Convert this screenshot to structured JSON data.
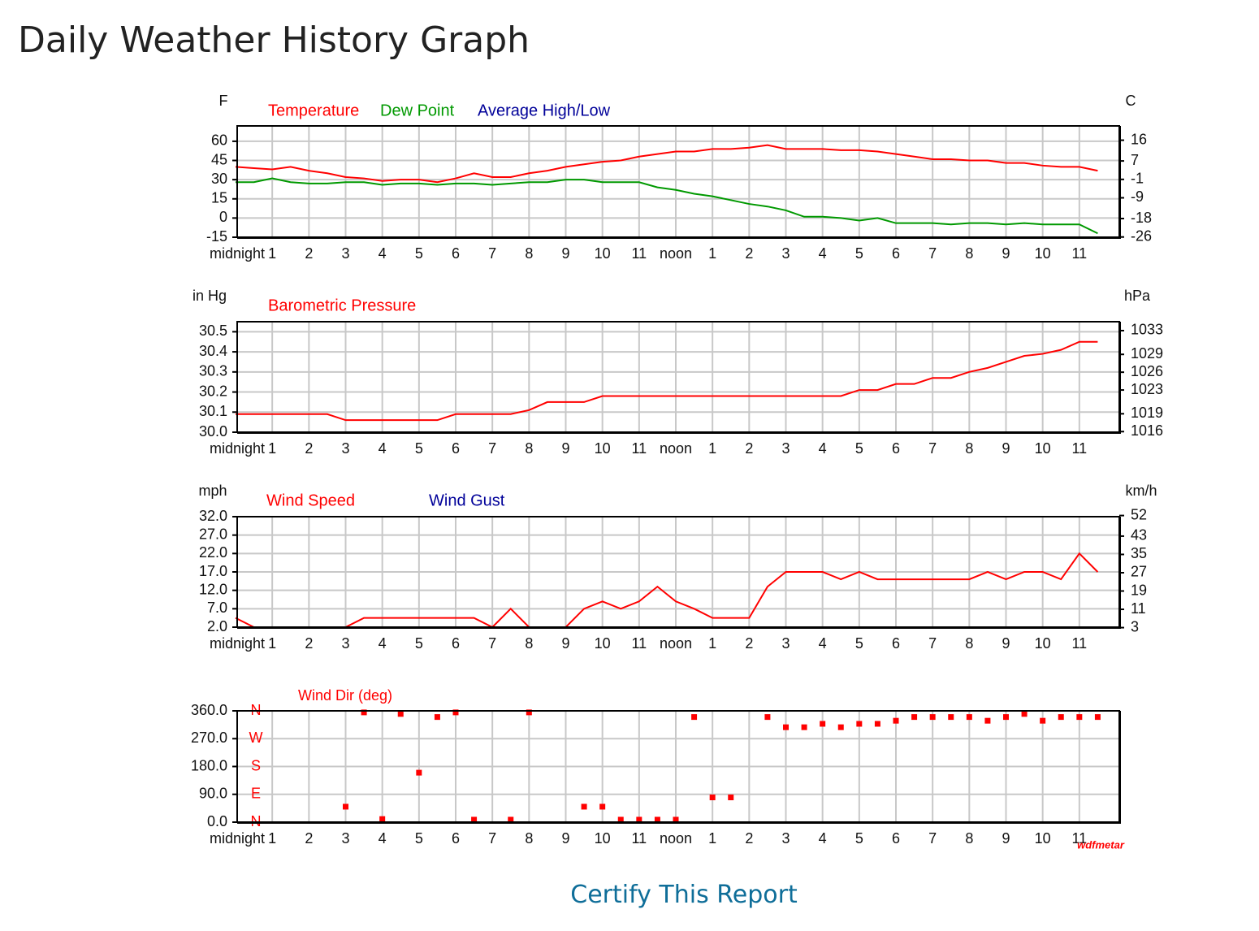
{
  "page_title": "Daily Weather History Graph",
  "link": "Certify This Report",
  "watermark": "wdfmetar",
  "chart_data": [
    {
      "type": "line",
      "ylabel": "F",
      "y2label": "C",
      "x": [
        0,
        0.5,
        1,
        1.5,
        2,
        2.5,
        3,
        3.5,
        4,
        4.5,
        5,
        5.5,
        6,
        6.5,
        7,
        7.5,
        8,
        8.5,
        9,
        9.5,
        10,
        10.5,
        11,
        11.5,
        12,
        12.5,
        13,
        13.5,
        14,
        14.5,
        15,
        15.5,
        16,
        16.5,
        17,
        17.5,
        18,
        18.5,
        19,
        19.5,
        20,
        20.5,
        21,
        21.5,
        22,
        22.5,
        23,
        23.5
      ],
      "series": [
        {
          "name": "Temperature",
          "color": "#ff0000",
          "values": [
            40,
            39,
            38,
            40,
            37,
            35,
            32,
            31,
            29,
            30,
            30,
            28,
            31,
            35,
            32,
            32,
            35,
            37,
            40,
            42,
            44,
            45,
            48,
            50,
            52,
            52,
            54,
            54,
            55,
            57,
            54,
            54,
            54,
            53,
            53,
            52,
            50,
            48,
            46,
            46,
            45,
            45,
            43,
            43,
            41,
            40,
            40,
            37
          ]
        },
        {
          "name": "Dew Point",
          "color": "#009900",
          "values": [
            28,
            28,
            31,
            28,
            27,
            27,
            28,
            28,
            26,
            27,
            27,
            26,
            27,
            27,
            26,
            27,
            28,
            28,
            30,
            30,
            28,
            28,
            28,
            24,
            22,
            19,
            17,
            14,
            11,
            9,
            6,
            1,
            1,
            0,
            -2,
            0,
            -4,
            -4,
            -4,
            -5,
            -4,
            -4,
            -5,
            -4,
            -5,
            -5,
            -5,
            -12
          ]
        },
        {
          "name": "Average High/Low",
          "color": "#000099",
          "values": [
            null,
            null,
            null,
            null,
            null,
            null,
            null,
            null,
            null,
            null,
            null,
            null,
            null,
            null,
            null,
            null,
            null,
            null,
            null,
            null,
            null,
            null,
            null,
            null,
            null,
            null,
            null,
            null,
            null,
            null,
            null,
            null,
            null,
            null,
            null,
            null,
            null,
            null,
            null,
            null,
            null,
            null,
            null,
            null,
            null,
            null,
            null,
            null
          ]
        }
      ],
      "xlim": [
        0,
        24
      ],
      "xticks": [
        {
          "value": 0,
          "label": "midnight"
        },
        1,
        2,
        3,
        4,
        5,
        6,
        7,
        8,
        9,
        10,
        11,
        {
          "value": 12,
          "label": "noon"
        },
        {
          "value": 13,
          "label": "1"
        },
        {
          "value": 14,
          "label": "2"
        },
        {
          "value": 15,
          "label": "3"
        },
        {
          "value": 16,
          "label": "4"
        },
        {
          "value": 17,
          "label": "5"
        },
        {
          "value": 18,
          "label": "6"
        },
        {
          "value": 19,
          "label": "7"
        },
        {
          "value": 20,
          "label": "8"
        },
        {
          "value": 21,
          "label": "9"
        },
        {
          "value": 22,
          "label": "10"
        },
        {
          "value": 23,
          "label": "11"
        }
      ],
      "ylim": [
        -15,
        72
      ],
      "yticks": [
        60,
        45,
        30,
        15,
        0,
        -15
      ],
      "y2lim": [
        -26.1,
        22.2
      ],
      "y2ticks": [
        16,
        7,
        -1,
        -9,
        -18,
        -26
      ],
      "grid": true
    },
    {
      "type": "line",
      "ylabel": "in Hg",
      "y2label": "hPa",
      "x": [
        0,
        0.5,
        1,
        1.5,
        2,
        2.5,
        3,
        3.5,
        4,
        4.5,
        5,
        5.5,
        6,
        6.5,
        7,
        7.5,
        8,
        8.5,
        9,
        9.5,
        10,
        10.5,
        11,
        11.5,
        12,
        12.5,
        13,
        13.5,
        14,
        14.5,
        15,
        15.5,
        16,
        16.5,
        17,
        17.5,
        18,
        18.5,
        19,
        19.5,
        20,
        20.5,
        21,
        21.5,
        22,
        22.5,
        23,
        23.5
      ],
      "series": [
        {
          "name": "Barometric Pressure",
          "color": "#ff0000",
          "values": [
            30.09,
            30.09,
            30.09,
            30.09,
            30.09,
            30.09,
            30.06,
            30.06,
            30.06,
            30.06,
            30.06,
            30.06,
            30.09,
            30.09,
            30.09,
            30.09,
            30.11,
            30.15,
            30.15,
            30.15,
            30.18,
            30.18,
            30.18,
            30.18,
            30.18,
            30.18,
            30.18,
            30.18,
            30.18,
            30.18,
            30.18,
            30.18,
            30.18,
            30.18,
            30.21,
            30.21,
            30.24,
            30.24,
            30.27,
            30.27,
            30.3,
            30.32,
            30.35,
            30.38,
            30.39,
            30.41,
            30.45,
            30.45
          ]
        }
      ],
      "xlim": [
        0,
        24
      ],
      "xticks": [
        {
          "value": 0,
          "label": "midnight"
        },
        1,
        2,
        3,
        4,
        5,
        6,
        7,
        8,
        9,
        10,
        11,
        {
          "value": 12,
          "label": "noon"
        },
        {
          "value": 13,
          "label": "1"
        },
        {
          "value": 14,
          "label": "2"
        },
        {
          "value": 15,
          "label": "3"
        },
        {
          "value": 16,
          "label": "4"
        },
        {
          "value": 17,
          "label": "5"
        },
        {
          "value": 18,
          "label": "6"
        },
        {
          "value": 19,
          "label": "7"
        },
        {
          "value": 20,
          "label": "8"
        },
        {
          "value": 21,
          "label": "9"
        },
        {
          "value": 22,
          "label": "10"
        },
        {
          "value": 23,
          "label": "11"
        }
      ],
      "ylim": [
        30.0,
        30.55
      ],
      "yticks": [
        30.5,
        30.4,
        30.3,
        30.2,
        30.1,
        {
          "value": 30,
          "label": "30.0"
        }
      ],
      "y2lim": [
        1015.9,
        1034.5
      ],
      "y2ticks": [
        1033,
        1029,
        1026,
        1023,
        1019,
        1016
      ],
      "grid": true
    },
    {
      "type": "line",
      "ylabel": "mph",
      "y2label": "km/h",
      "x": [
        0,
        0.5,
        1,
        1.5,
        2,
        2.5,
        3,
        3.5,
        4,
        4.5,
        5,
        5.5,
        6,
        6.5,
        7,
        7.5,
        8,
        8.5,
        9,
        9.5,
        10,
        10.5,
        11,
        11.5,
        12,
        12.5,
        13,
        13.5,
        14,
        14.5,
        15,
        15.5,
        16,
        16.5,
        17,
        17.5,
        18,
        18.5,
        19,
        19.5,
        20,
        20.5,
        21,
        21.5,
        22,
        22.5,
        23,
        23.5
      ],
      "series": [
        {
          "name": "Wind Speed",
          "color": "#ff0000",
          "values": [
            4.5,
            2,
            2,
            2,
            2,
            2,
            2,
            4.5,
            4.5,
            4.5,
            4.5,
            4.5,
            4.5,
            4.5,
            2,
            7,
            2,
            2,
            2,
            7,
            9,
            7,
            9,
            13,
            9,
            7,
            4.5,
            4.5,
            4.5,
            13,
            17,
            17,
            17,
            15,
            17,
            15,
            15,
            15,
            15,
            15,
            15,
            17,
            15,
            17,
            17,
            15,
            22,
            17
          ]
        },
        {
          "name": "Wind Gust",
          "color": "#000099",
          "values": [
            null,
            null,
            null,
            null,
            null,
            null,
            null,
            null,
            null,
            null,
            null,
            null,
            null,
            null,
            null,
            null,
            null,
            null,
            null,
            null,
            null,
            null,
            null,
            null,
            null,
            null,
            null,
            null,
            null,
            null,
            null,
            null,
            null,
            null,
            null,
            null,
            null,
            null,
            null,
            null,
            null,
            null,
            null,
            null,
            null,
            null,
            null,
            null
          ]
        }
      ],
      "xlim": [
        0,
        24
      ],
      "xticks": [
        {
          "value": 0,
          "label": "midnight"
        },
        1,
        2,
        3,
        4,
        5,
        6,
        7,
        8,
        9,
        10,
        11,
        {
          "value": 12,
          "label": "noon"
        },
        {
          "value": 13,
          "label": "1"
        },
        {
          "value": 14,
          "label": "2"
        },
        {
          "value": 15,
          "label": "3"
        },
        {
          "value": 16,
          "label": "4"
        },
        {
          "value": 17,
          "label": "5"
        },
        {
          "value": 18,
          "label": "6"
        },
        {
          "value": 19,
          "label": "7"
        },
        {
          "value": 20,
          "label": "8"
        },
        {
          "value": 21,
          "label": "9"
        },
        {
          "value": 22,
          "label": "10"
        },
        {
          "value": 23,
          "label": "11"
        }
      ],
      "ylim": [
        2,
        32
      ],
      "yticks": [
        {
          "value": 32,
          "label": "32.0"
        },
        {
          "value": 27,
          "label": "27.0"
        },
        {
          "value": 22,
          "label": "22.0"
        },
        {
          "value": 17,
          "label": "17.0"
        },
        {
          "value": 12,
          "label": "12.0"
        },
        {
          "value": 7,
          "label": "7.0"
        },
        {
          "value": 2,
          "label": "2.0"
        }
      ],
      "y2lim": [
        3.2,
        51.5
      ],
      "y2ticks": [
        52,
        43,
        35,
        27,
        19,
        11,
        3
      ],
      "grid": true
    },
    {
      "type": "scatter",
      "title": "Wind Dir (deg)",
      "color": "#ff0000",
      "x": [
        3,
        3.5,
        4,
        4.5,
        5,
        5.5,
        6,
        6.5,
        7.5,
        8,
        9.5,
        10,
        10.5,
        11,
        11.5,
        12,
        12.5,
        13,
        13.5,
        14.5,
        15,
        15.5,
        16,
        16.5,
        17,
        17.5,
        18,
        18.5,
        19,
        19.5,
        20,
        20.5,
        21,
        21.5,
        22,
        22.5,
        23,
        23.5
      ],
      "values": [
        50,
        355,
        10,
        350,
        160,
        340,
        355,
        8,
        8,
        355,
        50,
        50,
        8,
        8,
        8,
        8,
        340,
        80,
        80,
        340,
        307,
        307,
        318,
        307,
        318,
        318,
        328,
        340,
        340,
        340,
        340,
        328,
        340,
        350,
        328,
        340,
        340,
        340
      ],
      "xlim": [
        0,
        24
      ],
      "xticks": [
        {
          "value": 0,
          "label": "midnight"
        },
        1,
        2,
        3,
        4,
        5,
        6,
        7,
        8,
        9,
        10,
        11,
        {
          "value": 12,
          "label": "noon"
        },
        {
          "value": 13,
          "label": "1"
        },
        {
          "value": 14,
          "label": "2"
        },
        {
          "value": 15,
          "label": "3"
        },
        {
          "value": 16,
          "label": "4"
        },
        {
          "value": 17,
          "label": "5"
        },
        {
          "value": 18,
          "label": "6"
        },
        {
          "value": 19,
          "label": "7"
        },
        {
          "value": 20,
          "label": "8"
        },
        {
          "value": 21,
          "label": "9"
        },
        {
          "value": 22,
          "label": "10"
        },
        {
          "value": 23,
          "label": "11"
        }
      ],
      "ylim": [
        0,
        360
      ],
      "yticks": [
        {
          "value": 360,
          "label": "360.0"
        },
        {
          "value": 270,
          "label": "270.0"
        },
        {
          "value": 180,
          "label": "180.0"
        },
        {
          "value": 90,
          "label": "90.0"
        },
        {
          "value": 0,
          "label": "0.0"
        }
      ],
      "direction_ticks": [
        {
          "value": 360,
          "label": "N"
        },
        {
          "value": 270,
          "label": "W"
        },
        {
          "value": 180,
          "label": "S"
        },
        {
          "value": 90,
          "label": "E"
        },
        {
          "value": 0,
          "label": "N"
        }
      ],
      "grid": true
    }
  ]
}
